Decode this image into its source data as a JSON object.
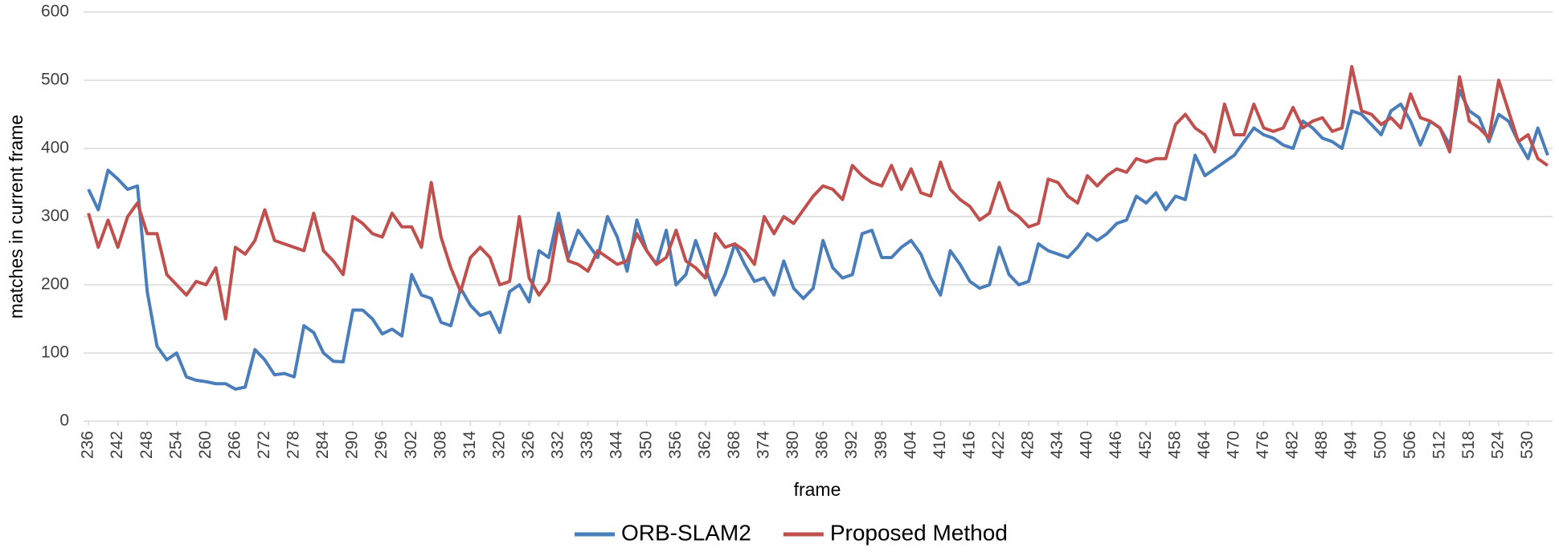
{
  "chart_data": {
    "type": "line",
    "x_label": "frame",
    "y_label": "matches in current frame",
    "x": [
      236,
      238,
      240,
      242,
      244,
      246,
      248,
      250,
      252,
      254,
      256,
      258,
      260,
      262,
      264,
      266,
      268,
      270,
      272,
      274,
      276,
      278,
      280,
      282,
      284,
      286,
      288,
      290,
      292,
      294,
      296,
      298,
      300,
      302,
      304,
      306,
      308,
      310,
      312,
      314,
      316,
      318,
      320,
      322,
      324,
      326,
      328,
      330,
      332,
      334,
      336,
      338,
      340,
      342,
      344,
      346,
      348,
      350,
      352,
      354,
      356,
      358,
      360,
      362,
      364,
      366,
      368,
      370,
      372,
      374,
      376,
      378,
      380,
      382,
      384,
      386,
      388,
      390,
      392,
      394,
      396,
      398,
      400,
      402,
      404,
      406,
      408,
      410,
      412,
      414,
      416,
      418,
      420,
      422,
      424,
      426,
      428,
      430,
      432,
      434,
      436,
      438,
      440,
      442,
      444,
      446,
      448,
      450,
      452,
      454,
      456,
      458,
      460,
      462,
      464,
      466,
      468,
      470,
      472,
      474,
      476,
      478,
      480,
      482,
      484,
      486,
      488,
      490,
      492,
      494,
      496,
      498,
      500,
      502,
      504,
      506,
      508,
      510,
      512,
      514,
      516,
      518,
      520,
      522,
      524,
      526,
      528,
      530,
      532,
      534
    ],
    "series": [
      {
        "name": "ORB-SLAM2",
        "color": "#4a7ebb",
        "values": [
          340,
          310,
          368,
          355,
          340,
          345,
          190,
          110,
          90,
          100,
          65,
          60,
          58,
          55,
          55,
          47,
          50,
          105,
          90,
          68,
          70,
          65,
          140,
          130,
          100,
          88,
          87,
          163,
          163,
          150,
          128,
          135,
          125,
          215,
          185,
          180,
          145,
          140,
          195,
          170,
          155,
          160,
          130,
          190,
          200,
          175,
          250,
          240,
          305,
          240,
          280,
          260,
          240,
          300,
          270,
          220,
          295,
          250,
          230,
          280,
          200,
          215,
          265,
          225,
          185,
          215,
          260,
          230,
          205,
          210,
          185,
          235,
          195,
          180,
          195,
          265,
          225,
          210,
          215,
          275,
          280,
          240,
          240,
          255,
          265,
          245,
          210,
          185,
          250,
          230,
          205,
          195,
          200,
          255,
          215,
          200,
          205,
          260,
          250,
          245,
          240,
          255,
          275,
          265,
          275,
          290,
          295,
          330,
          320,
          335,
          310,
          330,
          325,
          390,
          360,
          370,
          380,
          390,
          410,
          430,
          420,
          415,
          405,
          400,
          440,
          430,
          415,
          410,
          400,
          455,
          450,
          435,
          420,
          455,
          465,
          440,
          405,
          440,
          430,
          405,
          485,
          455,
          445,
          410,
          450,
          440,
          410,
          385,
          430,
          390
        ]
      },
      {
        "name": "Proposed Method",
        "color": "#c0504d",
        "values": [
          305,
          255,
          295,
          255,
          300,
          320,
          275,
          275,
          215,
          200,
          185,
          205,
          200,
          225,
          150,
          255,
          245,
          265,
          310,
          265,
          260,
          255,
          250,
          305,
          250,
          235,
          215,
          300,
          290,
          275,
          270,
          305,
          285,
          285,
          255,
          350,
          270,
          225,
          190,
          240,
          255,
          240,
          200,
          205,
          300,
          210,
          185,
          205,
          290,
          235,
          230,
          220,
          250,
          240,
          230,
          235,
          275,
          250,
          230,
          240,
          280,
          235,
          225,
          210,
          275,
          255,
          260,
          250,
          230,
          300,
          275,
          300,
          290,
          310,
          330,
          345,
          340,
          325,
          375,
          360,
          350,
          345,
          375,
          340,
          370,
          335,
          330,
          380,
          340,
          325,
          315,
          295,
          305,
          350,
          310,
          300,
          285,
          290,
          355,
          350,
          330,
          320,
          360,
          345,
          360,
          370,
          365,
          385,
          380,
          385,
          385,
          435,
          450,
          430,
          420,
          395,
          465,
          420,
          420,
          465,
          430,
          425,
          430,
          460,
          430,
          440,
          445,
          425,
          430,
          520,
          455,
          450,
          435,
          445,
          430,
          480,
          445,
          440,
          430,
          395,
          505,
          440,
          430,
          415,
          500,
          455,
          410,
          420,
          385,
          375
        ]
      }
    ],
    "xlim": [
      235,
      535
    ],
    "xticks": [
      236,
      242,
      248,
      254,
      260,
      266,
      272,
      278,
      284,
      290,
      296,
      302,
      308,
      314,
      320,
      326,
      332,
      338,
      344,
      350,
      356,
      362,
      368,
      374,
      380,
      386,
      392,
      398,
      404,
      410,
      416,
      422,
      428,
      434,
      440,
      446,
      452,
      458,
      464,
      470,
      476,
      482,
      488,
      494,
      500,
      506,
      512,
      518,
      524,
      530
    ],
    "ylim": [
      0,
      600
    ],
    "yticks": [
      0,
      100,
      200,
      300,
      400,
      500,
      600
    ],
    "grid": true,
    "legend": "bottom"
  }
}
